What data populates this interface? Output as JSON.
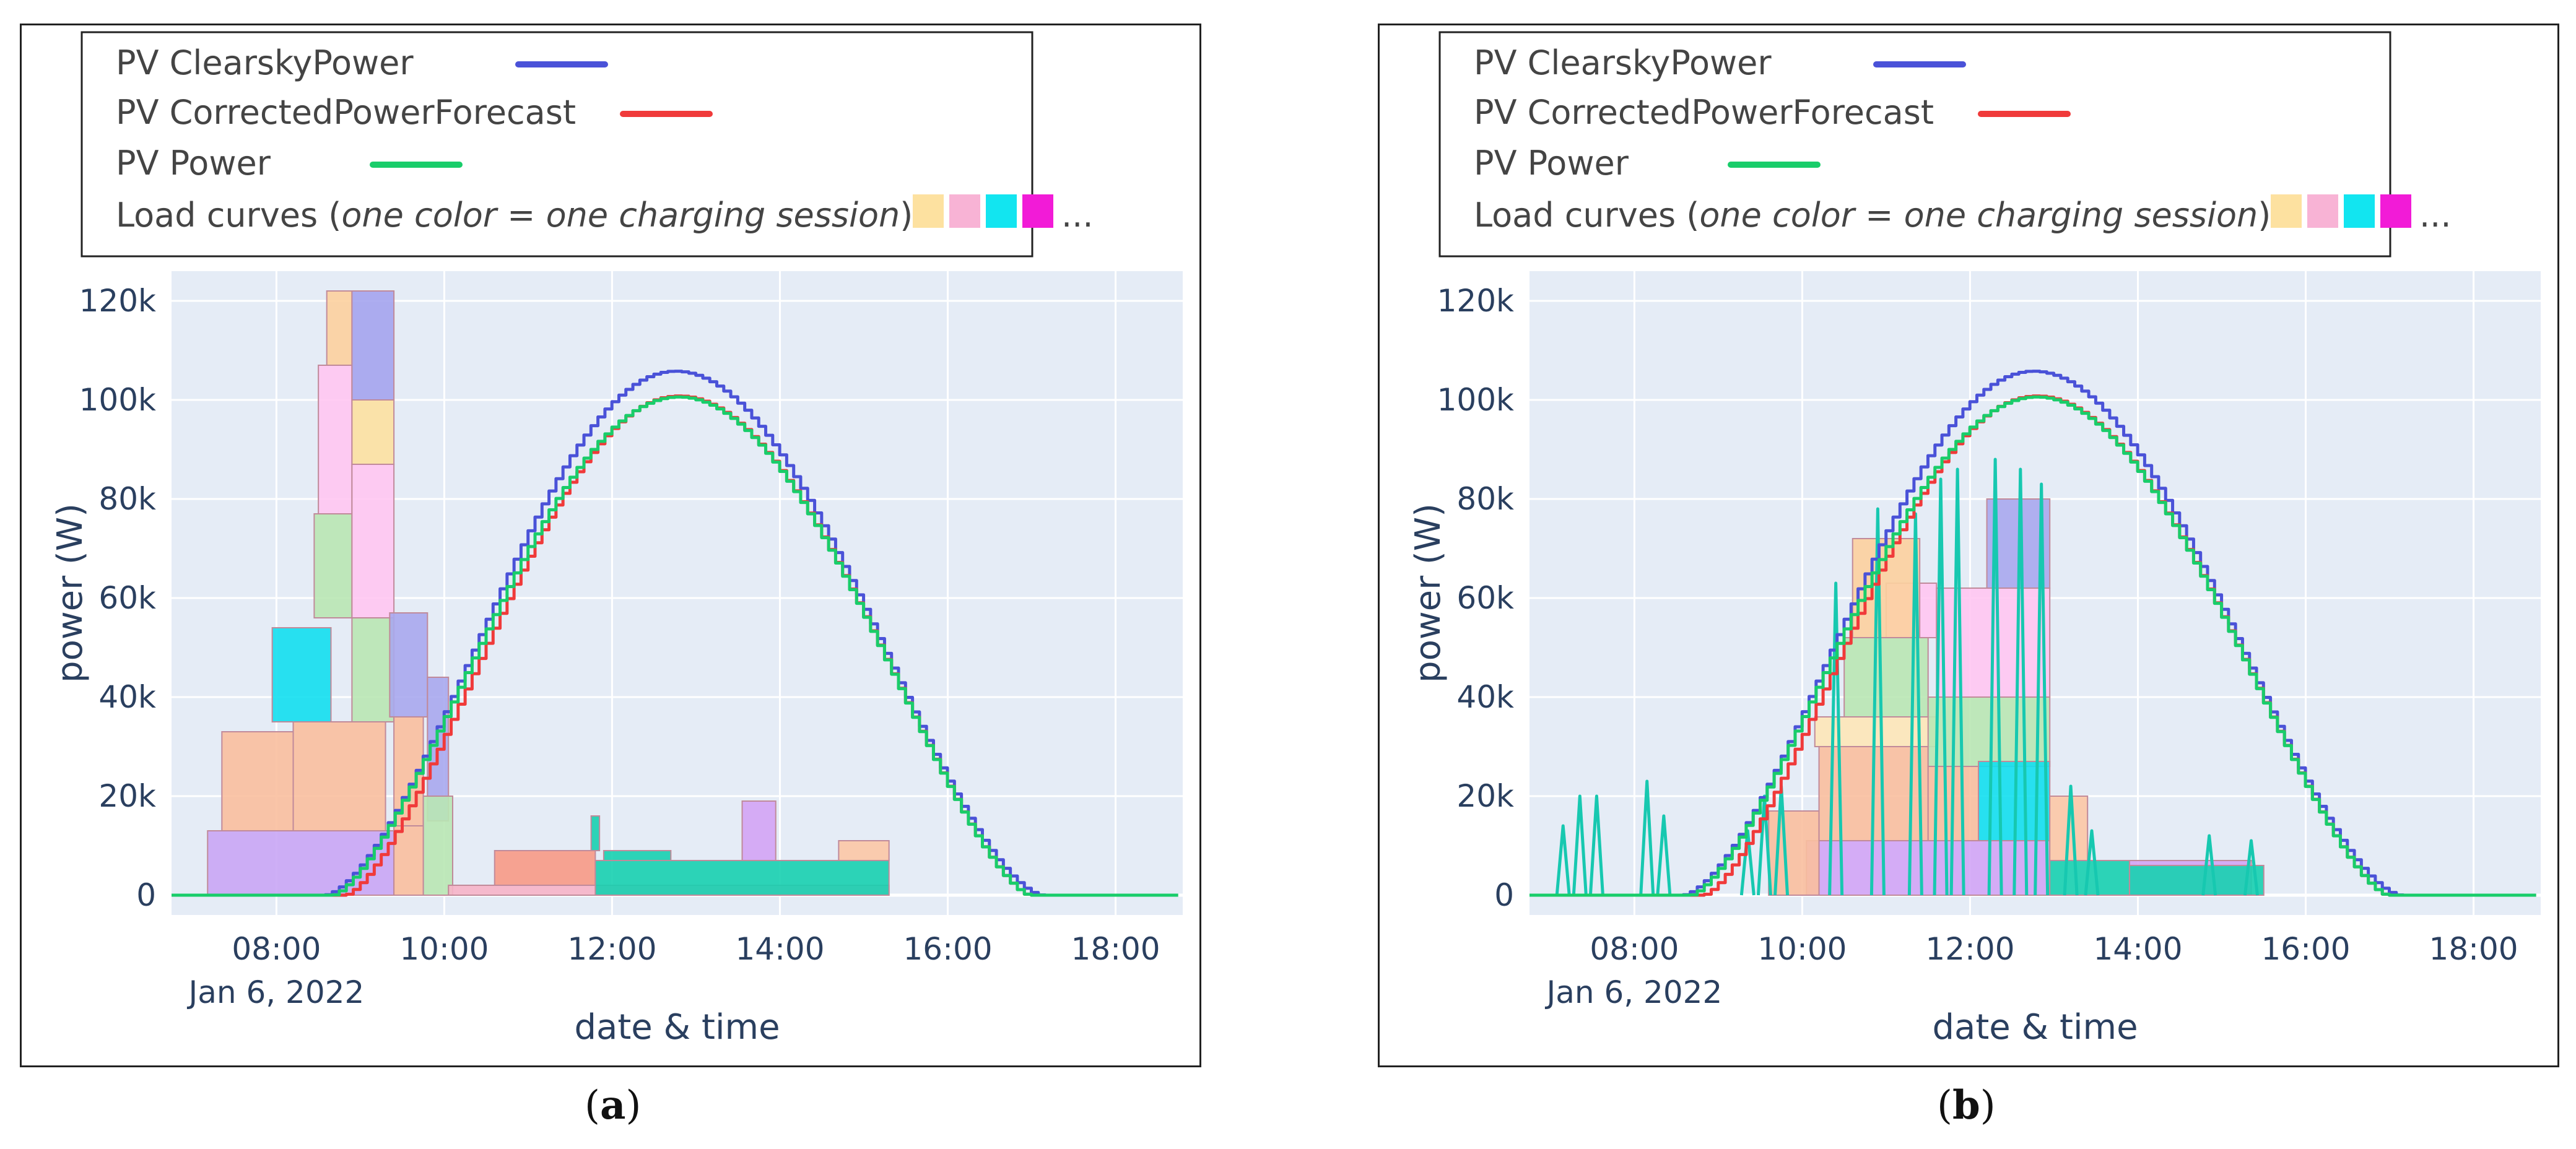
{
  "chart_data": [
    {
      "type": "area",
      "panel_label": "a",
      "xlabel": "date & time",
      "ylabel": "power (W)",
      "x_unit": "hours",
      "xlim": [
        6.75,
        18.8
      ],
      "ylim": [
        -4000,
        126000
      ],
      "x_ticks": [
        {
          "x": 8,
          "label": "08:00"
        },
        {
          "x": 10,
          "label": "10:00"
        },
        {
          "x": 12,
          "label": "12:00"
        },
        {
          "x": 14,
          "label": "14:00"
        },
        {
          "x": 16,
          "label": "16:00"
        },
        {
          "x": 18,
          "label": "18:00"
        }
      ],
      "x_date_label": "Jan 6, 2022",
      "y_ticks": [
        {
          "y": 0,
          "label": "0"
        },
        {
          "y": 20000,
          "label": "20k"
        },
        {
          "y": 40000,
          "label": "40k"
        },
        {
          "y": 60000,
          "label": "60k"
        },
        {
          "y": 80000,
          "label": "80k"
        },
        {
          "y": 100000,
          "label": "100k"
        },
        {
          "y": 120000,
          "label": "120k"
        }
      ],
      "legend": [
        {
          "name": "PV ClearskyPower",
          "color": "#4a52d8",
          "kind": "line"
        },
        {
          "name": "PV CorrectedPowerForecast",
          "color": "#f03a3a",
          "kind": "line"
        },
        {
          "name": "PV Power",
          "color": "#19cd6a",
          "kind": "line"
        },
        {
          "name_prefix": "Load curves (",
          "name_italic": "one color = one charging session",
          "name_suffix": ")",
          "kind": "swatches",
          "swatches": [
            "#fde1a0",
            "#f8b3d5",
            "#12e5f0",
            "#f21bd7"
          ],
          "ellipsis": "..."
        }
      ],
      "lines": [
        {
          "name": "PV ClearskyPower",
          "color": "#4a52d8",
          "start": 8.55,
          "end": 17.1,
          "peak_x": 12.72,
          "peak": 105800,
          "shape_exp": 1.6
        },
        {
          "name": "PV CorrectedPowerForecast",
          "color": "#f03a3a",
          "start": 8.8,
          "end": 16.95,
          "peak_x": 12.76,
          "peak": 100800,
          "shape_exp": 1.45
        },
        {
          "name": "PV Power",
          "color": "#19cd6a",
          "start": 8.65,
          "end": 16.95,
          "peak_x": 12.76,
          "peak": 100600,
          "shape_exp": 1.45
        }
      ],
      "load_bands": [
        {
          "color": "#c9a6f5",
          "x0": 7.18,
          "x1": 9.4,
          "y_bottom": 0,
          "y_top": 13000
        },
        {
          "color": "#f9bf9e",
          "x0": 7.35,
          "x1": 8.2,
          "y_bottom": 13000,
          "y_top": 33000
        },
        {
          "color": "#f9bf9e",
          "x0": 8.2,
          "x1": 9.3,
          "y_bottom": 13000,
          "y_top": 35000
        },
        {
          "color": "#12dff0",
          "x0": 7.95,
          "x1": 8.65,
          "y_bottom": 35000,
          "y_top": 54000
        },
        {
          "color": "#b9e7b4",
          "x0": 8.45,
          "x1": 8.9,
          "y_bottom": 56000,
          "y_top": 77000
        },
        {
          "color": "#ffc7f2",
          "x0": 8.5,
          "x1": 8.9,
          "y_bottom": 77000,
          "y_top": 107000
        },
        {
          "color": "#fcd09e",
          "x0": 8.6,
          "x1": 8.9,
          "y_bottom": 107000,
          "y_top": 122000
        },
        {
          "color": "#b9e7b4",
          "x0": 8.9,
          "x1": 9.4,
          "y_bottom": 35000,
          "y_top": 56000
        },
        {
          "color": "#ffc7f2",
          "x0": 8.9,
          "x1": 9.4,
          "y_bottom": 56000,
          "y_top": 87000
        },
        {
          "color": "#fce1a1",
          "x0": 8.9,
          "x1": 9.4,
          "y_bottom": 87000,
          "y_top": 100000
        },
        {
          "color": "#a4a4ee",
          "x0": 8.9,
          "x1": 9.4,
          "y_bottom": 100000,
          "y_top": 122000
        },
        {
          "color": "#a8a8ee",
          "x0": 9.35,
          "x1": 9.8,
          "y_bottom": 36000,
          "y_top": 57000
        },
        {
          "color": "#a8a8ee",
          "x0": 9.8,
          "x1": 10.05,
          "y_bottom": 15000,
          "y_top": 44000
        },
        {
          "color": "#f9bf9e",
          "x0": 9.4,
          "x1": 9.75,
          "y_bottom": 14000,
          "y_top": 36000
        },
        {
          "color": "#b9e7b4",
          "x0": 9.75,
          "x1": 10.1,
          "y_bottom": 0,
          "y_top": 20000
        },
        {
          "color": "#f9bf9e",
          "x0": 9.4,
          "x1": 9.75,
          "y_bottom": 0,
          "y_top": 14000
        },
        {
          "color": "#f6b4c8",
          "x0": 10.05,
          "x1": 15.3,
          "y_bottom": 0,
          "y_top": 2000
        },
        {
          "color": "#f79a86",
          "x0": 10.6,
          "x1": 11.8,
          "y_bottom": 2000,
          "y_top": 9000
        },
        {
          "color": "#17d0b0",
          "x0": 11.8,
          "x1": 15.3,
          "y_bottom": 0,
          "y_top": 7000
        },
        {
          "color": "#17d0b0",
          "x0": 11.9,
          "x1": 12.7,
          "y_bottom": 7000,
          "y_top": 9000
        },
        {
          "color": "#17d0b0",
          "x0": 11.75,
          "x1": 11.85,
          "y_bottom": 9000,
          "y_top": 16000
        },
        {
          "color": "#d3a4f5",
          "x0": 13.55,
          "x1": 13.95,
          "y_bottom": 7000,
          "y_top": 19000
        },
        {
          "color": "#fcc8a6",
          "x0": 14.7,
          "x1": 15.3,
          "y_bottom": 7000,
          "y_top": 11000
        }
      ]
    },
    {
      "type": "area",
      "panel_label": "b",
      "xlabel": "date & time",
      "ylabel": "power (W)",
      "x_unit": "hours",
      "xlim": [
        6.75,
        18.8
      ],
      "ylim": [
        -4000,
        126000
      ],
      "x_ticks": [
        {
          "x": 8,
          "label": "08:00"
        },
        {
          "x": 10,
          "label": "10:00"
        },
        {
          "x": 12,
          "label": "12:00"
        },
        {
          "x": 14,
          "label": "14:00"
        },
        {
          "x": 16,
          "label": "16:00"
        },
        {
          "x": 18,
          "label": "18:00"
        }
      ],
      "x_date_label": "Jan 6, 2022",
      "y_ticks": [
        {
          "y": 0,
          "label": "0"
        },
        {
          "y": 20000,
          "label": "20k"
        },
        {
          "y": 40000,
          "label": "40k"
        },
        {
          "y": 60000,
          "label": "60k"
        },
        {
          "y": 80000,
          "label": "80k"
        },
        {
          "y": 100000,
          "label": "100k"
        },
        {
          "y": 120000,
          "label": "120k"
        }
      ],
      "x_date_label_b": "Jan 6, 2022",
      "legend": [
        {
          "name": "PV ClearskyPower",
          "color": "#4a52d8",
          "kind": "line"
        },
        {
          "name": "PV CorrectedPowerForecast",
          "color": "#f03a3a",
          "kind": "line"
        },
        {
          "name": "PV Power",
          "color": "#19cd6a",
          "kind": "line"
        },
        {
          "name_prefix": "Load curves (",
          "name_italic": "one color = one charging session",
          "name_suffix": ")",
          "kind": "swatches",
          "swatches": [
            "#fde1a0",
            "#f8b3d5",
            "#12e5f0",
            "#f21bd7"
          ],
          "ellipsis": "..."
        }
      ],
      "lines": [
        {
          "name": "PV ClearskyPower",
          "color": "#4a52d8",
          "start": 8.55,
          "end": 17.1,
          "peak_x": 12.72,
          "peak": 105800,
          "shape_exp": 1.6
        },
        {
          "name": "PV CorrectedPowerForecast",
          "color": "#f03a3a",
          "start": 8.8,
          "end": 16.95,
          "peak_x": 12.76,
          "peak": 100800,
          "shape_exp": 1.45
        },
        {
          "name": "PV Power",
          "color": "#19cd6a",
          "start": 8.65,
          "end": 16.95,
          "peak_x": 12.76,
          "peak": 100600,
          "shape_exp": 1.45
        }
      ],
      "load_bands": [
        {
          "color": "#d2a5f6",
          "x0": 10.05,
          "x1": 12.95,
          "y_bottom": 0,
          "y_top": 11000
        },
        {
          "color": "#f9bf9e",
          "x0": 9.6,
          "x1": 10.2,
          "y_bottom": 0,
          "y_top": 17000
        },
        {
          "color": "#f9bf9e",
          "x0": 10.2,
          "x1": 11.5,
          "y_bottom": 11000,
          "y_top": 30000
        },
        {
          "color": "#f9bf9e",
          "x0": 11.5,
          "x1": 12.1,
          "y_bottom": 11000,
          "y_top": 26000
        },
        {
          "color": "#fde7b8",
          "x0": 10.15,
          "x1": 11.6,
          "y_bottom": 30000,
          "y_top": 36000
        },
        {
          "color": "#b9e7b4",
          "x0": 10.5,
          "x1": 11.5,
          "y_bottom": 36000,
          "y_top": 52000
        },
        {
          "color": "#b9e7b4",
          "x0": 11.5,
          "x1": 12.95,
          "y_bottom": 26000,
          "y_top": 40000
        },
        {
          "color": "#12dff0",
          "x0": 12.1,
          "x1": 12.95,
          "y_bottom": 11000,
          "y_top": 27000
        },
        {
          "color": "#ffc7f2",
          "x0": 11.0,
          "x1": 11.6,
          "y_bottom": 52000,
          "y_top": 63000
        },
        {
          "color": "#ffc7f2",
          "x0": 11.6,
          "x1": 12.95,
          "y_bottom": 40000,
          "y_top": 62000
        },
        {
          "color": "#fcd09e",
          "x0": 10.6,
          "x1": 11.4,
          "y_bottom": 52000,
          "y_top": 72000
        },
        {
          "color": "#a8a8ee",
          "x0": 12.2,
          "x1": 12.95,
          "y_bottom": 62000,
          "y_top": 80000
        },
        {
          "color": "#17d0b0",
          "x0": 12.95,
          "x1": 13.9,
          "y_bottom": 0,
          "y_top": 7000
        },
        {
          "color": "#fcc8a6",
          "x0": 12.95,
          "x1": 13.4,
          "y_bottom": 7000,
          "y_top": 20000
        },
        {
          "color": "#d3a4f5",
          "x0": 13.9,
          "x1": 15.35,
          "y_bottom": 0,
          "y_top": 7000
        },
        {
          "color": "#17d0b0",
          "x0": 13.9,
          "x1": 15.5,
          "y_bottom": 0,
          "y_top": 6000
        }
      ],
      "spikes": [
        {
          "color": "#17c8b0",
          "x": 7.15,
          "peak": 14000
        },
        {
          "color": "#17c8b0",
          "x": 7.35,
          "peak": 20000
        },
        {
          "color": "#17c8b0",
          "x": 7.55,
          "peak": 20000
        },
        {
          "color": "#17c8b0",
          "x": 8.15,
          "peak": 23000
        },
        {
          "color": "#17c8b0",
          "x": 8.35,
          "peak": 16000
        },
        {
          "color": "#17c8b0",
          "x": 9.35,
          "peak": 13000
        },
        {
          "color": "#17c8b0",
          "x": 9.55,
          "peak": 20000
        },
        {
          "color": "#17c8b0",
          "x": 9.75,
          "peak": 22000
        },
        {
          "color": "#17c8b0",
          "x": 10.4,
          "peak": 63000
        },
        {
          "color": "#17c8b0",
          "x": 10.9,
          "peak": 78000
        },
        {
          "color": "#17c8b0",
          "x": 11.35,
          "peak": 77000
        },
        {
          "color": "#17c8b0",
          "x": 11.65,
          "peak": 84000
        },
        {
          "color": "#17c8b0",
          "x": 11.85,
          "peak": 86000
        },
        {
          "color": "#17c8b0",
          "x": 12.3,
          "peak": 88000
        },
        {
          "color": "#17c8b0",
          "x": 12.6,
          "peak": 86000
        },
        {
          "color": "#17c8b0",
          "x": 12.85,
          "peak": 83000
        },
        {
          "color": "#17c8b0",
          "x": 13.2,
          "peak": 22000
        },
        {
          "color": "#17c8b0",
          "x": 13.45,
          "peak": 13000
        },
        {
          "color": "#17c8b0",
          "x": 14.85,
          "peak": 12000
        },
        {
          "color": "#17c8b0",
          "x": 15.35,
          "peak": 11000
        }
      ]
    }
  ]
}
